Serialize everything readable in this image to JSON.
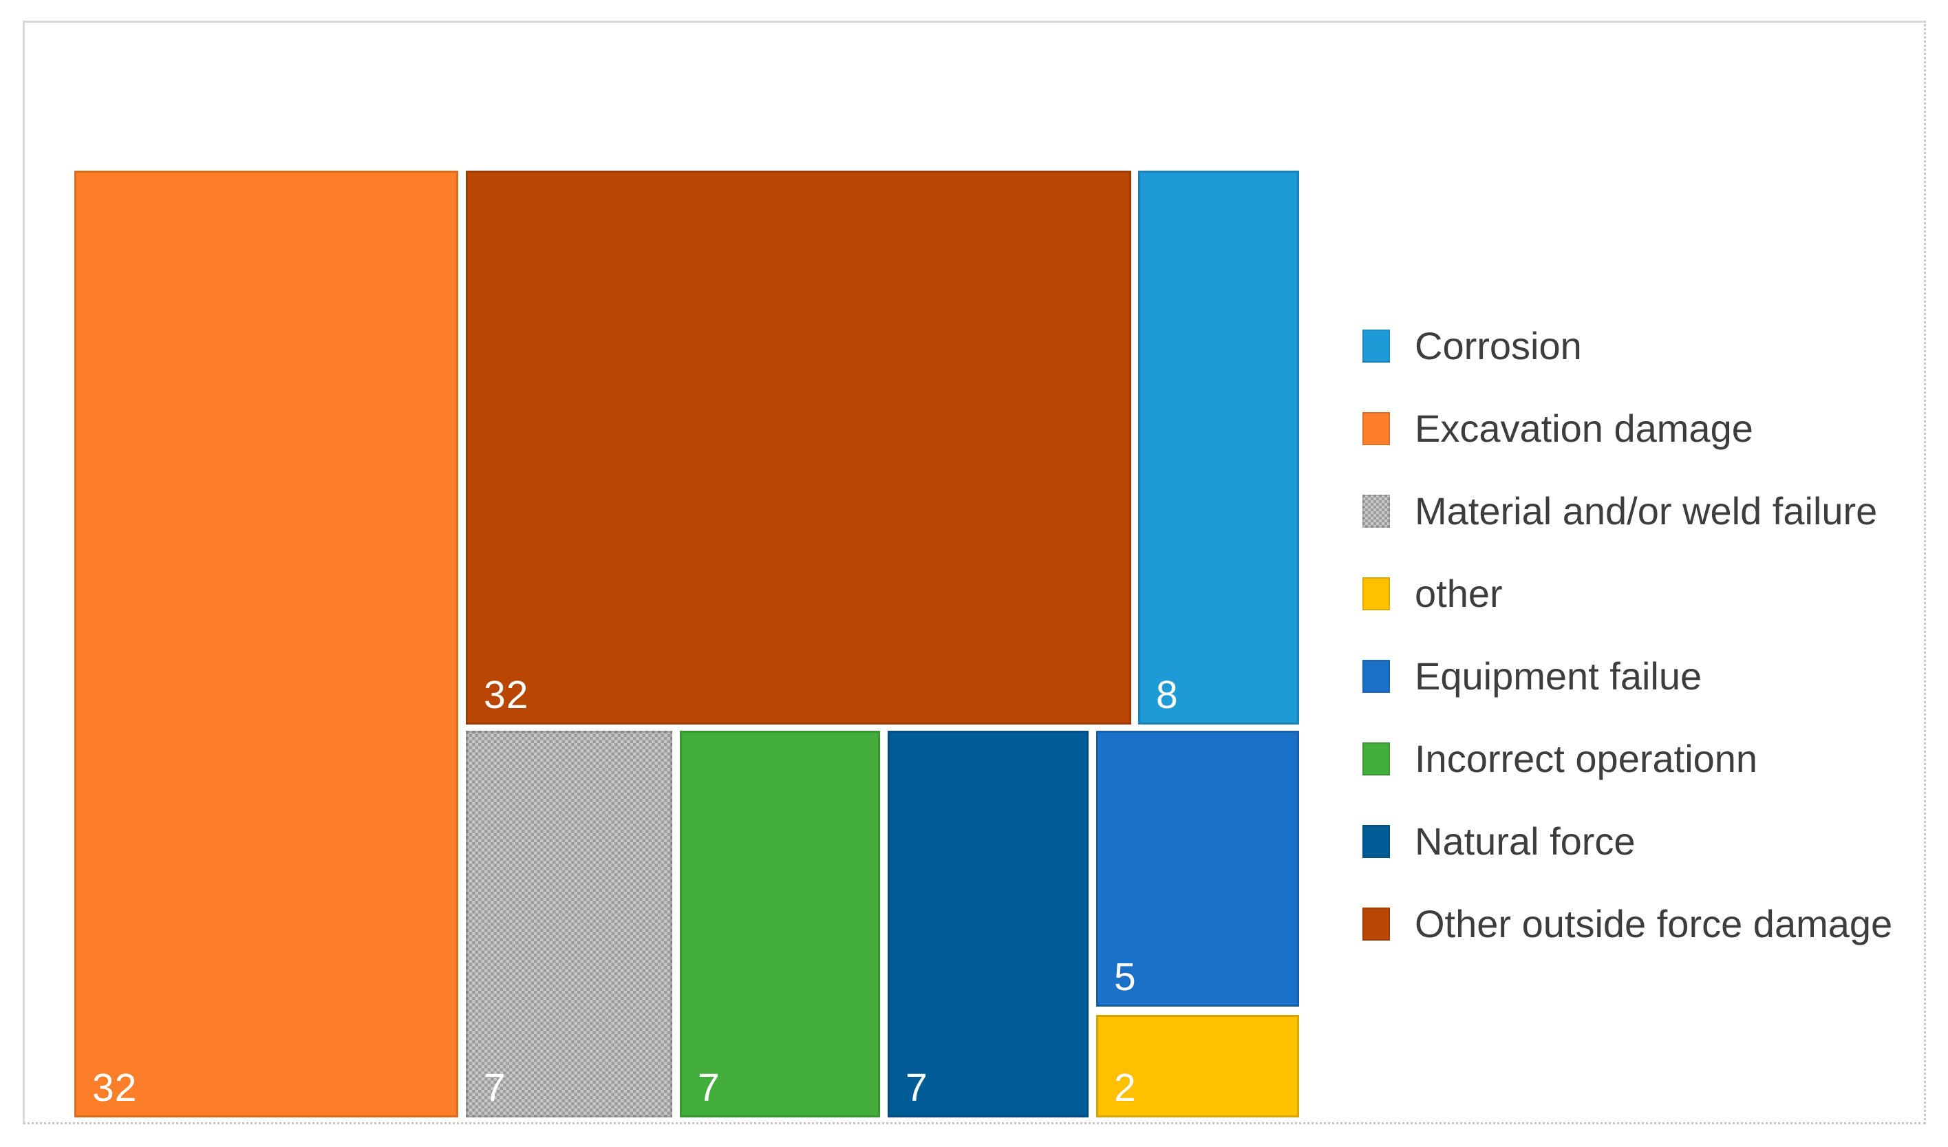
{
  "chart_data": {
    "type": "treemap",
    "title": "",
    "legend_position": "right",
    "categories": [
      "Corrosion",
      "Excavation damage",
      "Material and/or weld failure",
      "other",
      "Equipment failue",
      "Incorrect operationn",
      "Natural force",
      "Other outside force damage"
    ],
    "values": [
      8,
      32,
      7,
      2,
      5,
      7,
      7,
      32
    ],
    "colors": [
      "#1E9BD7",
      "#FD7E28",
      "#AFAFAF",
      "#FFC000",
      "#1B71C8",
      "#44AE3C",
      "#015C96",
      "#B94602"
    ],
    "data_labels_shown": [
      "8",
      "32",
      "7",
      "2",
      "5",
      "7",
      "7",
      "32"
    ],
    "values_total": 100
  },
  "tiles": {
    "excavation": {
      "category": "Excavation damage",
      "label": "32",
      "color": "#FD7E28"
    },
    "outside_force": {
      "category": "Other outside force damage",
      "label": "32",
      "color": "#B94602"
    },
    "corrosion": {
      "category": "Corrosion",
      "label": "8",
      "color": "#1E9BD7"
    },
    "material": {
      "category": "Material and/or weld failure",
      "label": "7",
      "color": "#AFAFAF"
    },
    "incorrect": {
      "category": "Incorrect operationn",
      "label": "7",
      "color": "#44AE3C"
    },
    "natural": {
      "category": "Natural force",
      "label": "7",
      "color": "#015C96"
    },
    "equipment": {
      "category": "Equipment failue",
      "label": "5",
      "color": "#1B71C8"
    },
    "other": {
      "category": "other",
      "label": "2",
      "color": "#FFC000"
    }
  },
  "legend": {
    "items": [
      {
        "label": "Corrosion",
        "color": "#1E9BD7"
      },
      {
        "label": "Excavation damage",
        "color": "#FD7E28"
      },
      {
        "label": "Material and/or weld failure",
        "color": "#AFAFAF"
      },
      {
        "label": "other",
        "color": "#FFC000"
      },
      {
        "label": "Equipment failue",
        "color": "#1B71C8"
      },
      {
        "label": "Incorrect operationn",
        "color": "#44AE3C"
      },
      {
        "label": "Natural force",
        "color": "#015C96"
      },
      {
        "label": "Other outside force damage",
        "color": "#B94602"
      }
    ]
  },
  "colors": {
    "frame_border_solid": "#D8D8D8",
    "frame_border_dotted": "#C6C6C6",
    "pattern_light": "#C7C7C7",
    "pattern_dark": "#9C9C9C",
    "tile_label_text": "#FFFFFF",
    "legend_text": "#3D3D3D",
    "background": "#FFFFFF"
  }
}
